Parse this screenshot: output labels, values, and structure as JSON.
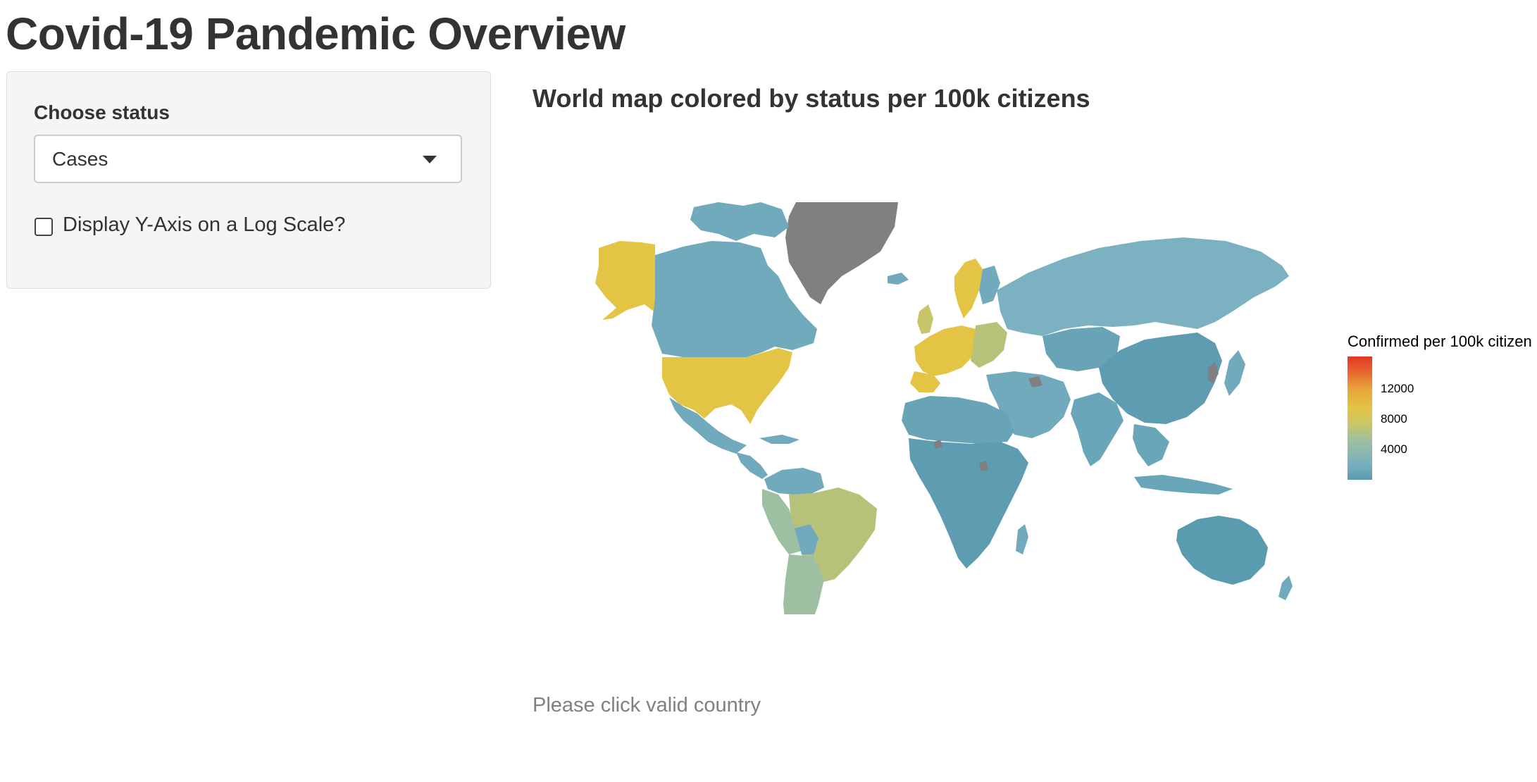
{
  "header": {
    "title": "Covid-19 Pandemic Overview"
  },
  "sidebar": {
    "status_label": "Choose status",
    "status_selected": "Cases",
    "log_scale_label": "Display Y-Axis on a Log Scale?",
    "log_scale_checked": false
  },
  "main": {
    "map_title": "World map colored by status per 100k citizens",
    "hint": "Please click valid country"
  },
  "legend": {
    "title": "Confirmed per 100k citizen",
    "ticks": [
      "12000",
      "8000",
      "4000"
    ],
    "colors": {
      "low": "#5a9bb0",
      "mid_low": "#78afc0",
      "mid": "#b5c27a",
      "mid_high": "#e3c444",
      "high": "#e03a22",
      "no_data": "#808080"
    }
  }
}
